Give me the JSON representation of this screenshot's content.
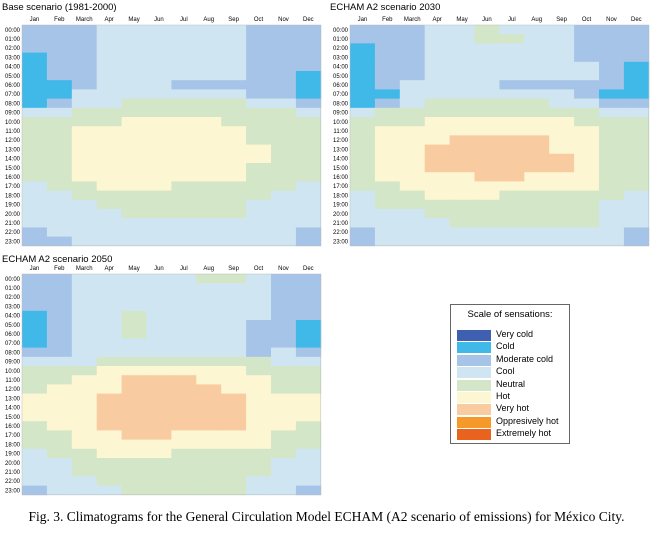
{
  "caption": "Fig. 3. Climatograms for the General Circulation Model ECHAM (A2 scenario of emissions) for México City.",
  "months": [
    "Jan",
    "Feb",
    "March",
    "Apr",
    "May",
    "Jun",
    "Jul",
    "Aug",
    "Sep",
    "Oct",
    "Nov",
    "Dec"
  ],
  "hours": [
    "00:00",
    "01:00",
    "02:00",
    "03:00",
    "04:00",
    "05:00",
    "06:00",
    "07:00",
    "08:00",
    "09:00",
    "10:00",
    "11:00",
    "12:00",
    "13:00",
    "14:00",
    "15:00",
    "16:00",
    "17:00",
    "18:00",
    "19:00",
    "20:00",
    "21:00",
    "22:00",
    "23:00"
  ],
  "legend": {
    "title": "Scale of sensations:",
    "items": [
      {
        "label": "Very cold",
        "color": "#3F5FB0"
      },
      {
        "label": "Cold",
        "color": "#40B8E8"
      },
      {
        "label": "Moderate cold",
        "color": "#A5C4E8"
      },
      {
        "label": "Cool",
        "color": "#CFE6F2"
      },
      {
        "label": "Neutral",
        "color": "#D3E6C8"
      },
      {
        "label": "Hot",
        "color": "#FDF6D2"
      },
      {
        "label": "Very hot",
        "color": "#F9CBA0"
      },
      {
        "label": "Oppresively hot",
        "color": "#F59A2A"
      },
      {
        "label": "Extremely hot",
        "color": "#E8641E"
      }
    ]
  },
  "chart_data": [
    {
      "type": "heatmap",
      "title": "Base scenario (1981-2000)",
      "note": "values are indices into legend.items (0=Very cold ... 8=Extremely hot); rows = hours 00:00-23:00, columns = Jan-Dec",
      "values": [
        [
          2,
          2,
          2,
          3,
          3,
          3,
          3,
          3,
          3,
          2,
          2,
          2
        ],
        [
          2,
          2,
          2,
          3,
          3,
          3,
          3,
          3,
          3,
          2,
          2,
          2
        ],
        [
          2,
          2,
          2,
          3,
          3,
          3,
          3,
          3,
          3,
          2,
          2,
          2
        ],
        [
          1,
          2,
          2,
          3,
          3,
          3,
          3,
          3,
          3,
          2,
          2,
          2
        ],
        [
          1,
          2,
          2,
          3,
          3,
          3,
          3,
          3,
          3,
          2,
          2,
          2
        ],
        [
          1,
          2,
          2,
          3,
          3,
          3,
          3,
          3,
          3,
          2,
          2,
          1
        ],
        [
          1,
          1,
          2,
          3,
          3,
          3,
          2,
          2,
          2,
          2,
          2,
          1
        ],
        [
          1,
          1,
          3,
          3,
          3,
          3,
          3,
          3,
          3,
          2,
          2,
          1
        ],
        [
          1,
          2,
          3,
          3,
          4,
          4,
          4,
          4,
          4,
          3,
          3,
          2
        ],
        [
          3,
          3,
          4,
          4,
          4,
          4,
          4,
          4,
          4,
          4,
          4,
          3
        ],
        [
          4,
          4,
          4,
          4,
          5,
          5,
          5,
          5,
          4,
          4,
          4,
          4
        ],
        [
          4,
          4,
          5,
          5,
          5,
          5,
          5,
          5,
          5,
          4,
          4,
          4
        ],
        [
          4,
          4,
          5,
          5,
          5,
          5,
          5,
          5,
          5,
          4,
          4,
          4
        ],
        [
          4,
          4,
          5,
          5,
          5,
          5,
          5,
          5,
          5,
          5,
          4,
          4
        ],
        [
          4,
          4,
          5,
          5,
          5,
          5,
          5,
          5,
          5,
          5,
          4,
          4
        ],
        [
          4,
          4,
          5,
          5,
          5,
          5,
          5,
          5,
          5,
          4,
          4,
          4
        ],
        [
          4,
          4,
          5,
          5,
          5,
          5,
          5,
          5,
          5,
          4,
          4,
          4
        ],
        [
          3,
          4,
          4,
          5,
          5,
          5,
          4,
          4,
          4,
          4,
          4,
          3
        ],
        [
          3,
          3,
          4,
          4,
          4,
          4,
          4,
          4,
          4,
          4,
          3,
          3
        ],
        [
          3,
          3,
          3,
          4,
          4,
          4,
          4,
          4,
          4,
          3,
          3,
          3
        ],
        [
          3,
          3,
          3,
          3,
          4,
          4,
          4,
          4,
          4,
          3,
          3,
          3
        ],
        [
          3,
          3,
          3,
          3,
          3,
          3,
          3,
          3,
          3,
          3,
          3,
          3
        ],
        [
          2,
          3,
          3,
          3,
          3,
          3,
          3,
          3,
          3,
          3,
          3,
          2
        ],
        [
          2,
          2,
          3,
          3,
          3,
          3,
          3,
          3,
          3,
          3,
          3,
          2
        ]
      ]
    },
    {
      "type": "heatmap",
      "title": "ECHAM A2 scenario 2030",
      "note": "values are indices into legend.items",
      "values": [
        [
          2,
          2,
          2,
          3,
          3,
          4,
          3,
          3,
          3,
          2,
          2,
          2
        ],
        [
          2,
          2,
          2,
          3,
          3,
          4,
          4,
          3,
          3,
          2,
          2,
          2
        ],
        [
          1,
          2,
          2,
          3,
          3,
          3,
          3,
          3,
          3,
          2,
          2,
          2
        ],
        [
          1,
          2,
          2,
          3,
          3,
          3,
          3,
          3,
          3,
          2,
          2,
          2
        ],
        [
          1,
          2,
          2,
          3,
          3,
          3,
          3,
          3,
          3,
          3,
          2,
          1
        ],
        [
          1,
          2,
          2,
          3,
          3,
          3,
          3,
          3,
          3,
          3,
          2,
          1
        ],
        [
          1,
          2,
          3,
          3,
          3,
          3,
          2,
          2,
          2,
          2,
          2,
          1
        ],
        [
          1,
          1,
          3,
          3,
          3,
          3,
          3,
          3,
          3,
          2,
          1,
          1
        ],
        [
          1,
          2,
          3,
          4,
          4,
          4,
          4,
          4,
          3,
          3,
          2,
          2
        ],
        [
          3,
          4,
          4,
          4,
          4,
          4,
          4,
          4,
          4,
          4,
          3,
          3
        ],
        [
          4,
          4,
          4,
          5,
          5,
          5,
          5,
          5,
          5,
          4,
          4,
          4
        ],
        [
          4,
          5,
          5,
          5,
          5,
          5,
          5,
          5,
          5,
          5,
          4,
          4
        ],
        [
          4,
          5,
          5,
          5,
          6,
          6,
          6,
          6,
          5,
          5,
          4,
          4
        ],
        [
          4,
          5,
          5,
          6,
          6,
          6,
          6,
          6,
          5,
          5,
          4,
          4
        ],
        [
          4,
          5,
          5,
          6,
          6,
          6,
          6,
          6,
          6,
          5,
          4,
          4
        ],
        [
          4,
          5,
          5,
          6,
          6,
          6,
          6,
          6,
          6,
          5,
          4,
          4
        ],
        [
          4,
          5,
          5,
          5,
          5,
          6,
          6,
          5,
          5,
          5,
          4,
          4
        ],
        [
          4,
          4,
          5,
          5,
          5,
          5,
          5,
          5,
          5,
          5,
          4,
          4
        ],
        [
          3,
          4,
          4,
          5,
          5,
          5,
          4,
          4,
          4,
          4,
          4,
          3
        ],
        [
          3,
          4,
          4,
          4,
          4,
          4,
          4,
          4,
          4,
          4,
          3,
          3
        ],
        [
          3,
          3,
          3,
          4,
          4,
          4,
          4,
          4,
          4,
          4,
          3,
          3
        ],
        [
          3,
          3,
          3,
          3,
          4,
          4,
          4,
          4,
          4,
          4,
          3,
          3
        ],
        [
          2,
          3,
          3,
          3,
          3,
          3,
          3,
          3,
          3,
          3,
          3,
          2
        ],
        [
          2,
          3,
          3,
          3,
          3,
          3,
          3,
          3,
          3,
          3,
          3,
          2
        ]
      ]
    },
    {
      "type": "heatmap",
      "title": "ECHAM A2 scenario 2050",
      "note": "values are indices into legend.items",
      "values": [
        [
          2,
          2,
          3,
          3,
          3,
          3,
          3,
          4,
          4,
          3,
          2,
          2
        ],
        [
          2,
          2,
          3,
          3,
          3,
          3,
          3,
          3,
          3,
          3,
          2,
          2
        ],
        [
          2,
          2,
          3,
          3,
          3,
          3,
          3,
          3,
          3,
          3,
          2,
          2
        ],
        [
          2,
          2,
          3,
          3,
          3,
          3,
          3,
          3,
          3,
          3,
          2,
          2
        ],
        [
          1,
          2,
          3,
          3,
          4,
          3,
          3,
          3,
          3,
          3,
          2,
          2
        ],
        [
          1,
          2,
          3,
          3,
          4,
          3,
          3,
          3,
          3,
          2,
          2,
          1
        ],
        [
          1,
          2,
          3,
          3,
          4,
          3,
          3,
          3,
          3,
          2,
          2,
          1
        ],
        [
          1,
          2,
          3,
          3,
          3,
          3,
          3,
          3,
          3,
          2,
          2,
          1
        ],
        [
          2,
          2,
          3,
          3,
          3,
          3,
          3,
          3,
          3,
          2,
          3,
          2
        ],
        [
          3,
          3,
          3,
          4,
          4,
          4,
          4,
          4,
          4,
          4,
          3,
          3
        ],
        [
          4,
          4,
          4,
          5,
          5,
          5,
          5,
          5,
          5,
          4,
          4,
          4
        ],
        [
          4,
          4,
          5,
          5,
          6,
          6,
          6,
          5,
          5,
          5,
          4,
          4
        ],
        [
          4,
          5,
          5,
          5,
          6,
          6,
          6,
          6,
          5,
          5,
          4,
          4
        ],
        [
          5,
          5,
          5,
          6,
          6,
          6,
          6,
          6,
          6,
          5,
          5,
          5
        ],
        [
          5,
          5,
          5,
          6,
          6,
          6,
          6,
          6,
          6,
          5,
          5,
          5
        ],
        [
          5,
          5,
          5,
          6,
          6,
          6,
          6,
          6,
          6,
          5,
          5,
          5
        ],
        [
          4,
          5,
          5,
          6,
          6,
          6,
          6,
          6,
          6,
          5,
          5,
          4
        ],
        [
          4,
          4,
          5,
          5,
          6,
          6,
          5,
          5,
          5,
          5,
          4,
          4
        ],
        [
          4,
          4,
          5,
          5,
          5,
          5,
          5,
          5,
          5,
          5,
          4,
          4
        ],
        [
          3,
          4,
          4,
          5,
          5,
          5,
          4,
          4,
          4,
          4,
          4,
          3
        ],
        [
          3,
          3,
          4,
          4,
          4,
          4,
          4,
          4,
          4,
          4,
          3,
          3
        ],
        [
          3,
          3,
          4,
          4,
          4,
          4,
          4,
          4,
          4,
          4,
          3,
          3
        ],
        [
          3,
          3,
          3,
          4,
          4,
          4,
          4,
          4,
          4,
          3,
          3,
          3
        ],
        [
          2,
          3,
          3,
          3,
          4,
          4,
          4,
          4,
          4,
          3,
          3,
          2
        ]
      ]
    }
  ]
}
